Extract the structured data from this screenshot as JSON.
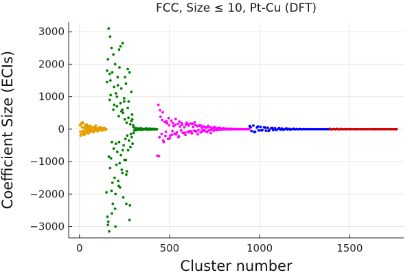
{
  "chart_data": {
    "type": "scatter",
    "title": "FCC, Size ≤ 10, Pt-Cu (DFT)",
    "xlabel": "Cluster number",
    "ylabel": "Coefficient Size (ECIs)",
    "xlim": [
      -60,
      1800
    ],
    "ylim": [
      -3350,
      3300
    ],
    "xticks": [
      0,
      500,
      1000,
      1500
    ],
    "yticks": [
      -3000,
      -2000,
      -1000,
      0,
      1000,
      2000,
      3000
    ],
    "xtick_labels": [
      "0",
      "500",
      "1000",
      "1500"
    ],
    "ytick_labels": [
      "−3000",
      "−2000",
      "−1000",
      "0",
      "1000",
      "2000",
      "3000"
    ],
    "grid": true,
    "legend": "none",
    "series": [
      {
        "color": "#e69f00",
        "x": [
          2,
          5,
          8,
          11,
          14,
          17,
          20,
          23,
          26,
          29,
          32,
          35,
          38,
          41,
          44,
          47,
          50,
          53,
          56,
          59,
          62,
          65,
          68,
          71,
          74,
          77,
          80,
          83,
          86,
          89,
          92,
          95,
          98,
          101,
          104,
          107,
          110,
          113,
          116,
          119,
          122,
          125,
          128,
          131,
          134,
          137,
          140,
          143,
          146,
          149,
          6,
          18,
          30,
          42,
          54,
          66,
          78,
          90,
          102,
          114,
          126,
          138,
          12,
          24,
          36,
          48,
          60,
          72,
          84,
          96,
          108,
          120,
          132,
          144
        ],
        "y": [
          120,
          -80,
          150,
          -150,
          60,
          -60,
          180,
          -120,
          40,
          -40,
          100,
          -100,
          30,
          -30,
          90,
          -90,
          20,
          -20,
          80,
          -70,
          10,
          -10,
          60,
          -60,
          50,
          -50,
          40,
          -40,
          30,
          -30,
          25,
          -25,
          20,
          -20,
          15,
          -15,
          10,
          -10,
          35,
          -35,
          45,
          -45,
          25,
          -25,
          15,
          -15,
          10,
          -10,
          5,
          -5,
          -200,
          210,
          -160,
          140,
          -110,
          70,
          -90,
          110,
          -65,
          55,
          -40,
          35,
          190,
          -180,
          130,
          -130,
          95,
          -75,
          65,
          -55,
          45,
          -25,
          20,
          -15
        ]
      },
      {
        "color": "#008000",
        "x": [
          150,
          153,
          155,
          158,
          160,
          162,
          165,
          168,
          170,
          172,
          175,
          178,
          180,
          182,
          185,
          188,
          190,
          192,
          195,
          198,
          200,
          202,
          205,
          208,
          210,
          212,
          215,
          218,
          220,
          222,
          225,
          228,
          230,
          232,
          235,
          238,
          240,
          242,
          245,
          248,
          250,
          252,
          255,
          258,
          260,
          262,
          265,
          268,
          270,
          272,
          275,
          278,
          280,
          282,
          285,
          288,
          290,
          292,
          295,
          298,
          300,
          153,
          163,
          173,
          183,
          193,
          203,
          213,
          223,
          233,
          243,
          253,
          263,
          273,
          283,
          293,
          158,
          168,
          178,
          188,
          198,
          208,
          218,
          228,
          238,
          248,
          258,
          268,
          278,
          288,
          170,
          180,
          200,
          220,
          240,
          260,
          300,
          305,
          310,
          315,
          320,
          325,
          330,
          335,
          340,
          345,
          350,
          355,
          360,
          365,
          370,
          375,
          380,
          385,
          390,
          395,
          400,
          405,
          410,
          415,
          420,
          425,
          430
        ],
        "y": [
          -1950,
          1800,
          -2700,
          2150,
          -2850,
          3100,
          -3150,
          900,
          -1200,
          1500,
          -900,
          2500,
          -400,
          1750,
          -2300,
          600,
          -600,
          1300,
          -1500,
          2000,
          -2000,
          1100,
          -1100,
          700,
          -700,
          1600,
          -1600,
          400,
          -400,
          1900,
          -1800,
          800,
          -800,
          1250,
          -1250,
          600,
          -650,
          500,
          -500,
          950,
          -950,
          300,
          -300,
          1400,
          -1400,
          200,
          -200,
          650,
          -650,
          350,
          -350,
          1750,
          -2350,
          150,
          -150,
          250,
          -250,
          450,
          -450,
          120,
          -120,
          1450,
          -850,
          1050,
          -1650,
          750,
          -450,
          1350,
          -1050,
          550,
          -2100,
          1600,
          -1300,
          850,
          -550,
          300,
          -2950,
          1700,
          -1900,
          2300,
          -2450,
          1000,
          -1750,
          2550,
          -1350,
          850,
          -950,
          1850,
          -2800,
          1150,
          2850,
          -2600,
          -3000,
          2450,
          2650,
          -2300,
          60,
          -40,
          30,
          -30,
          20,
          -20,
          15,
          -15,
          25,
          -25,
          10,
          -10,
          5,
          -5,
          20,
          -20,
          10,
          -10,
          15,
          -15,
          5,
          -5,
          10,
          -10,
          5,
          -5,
          0
        ]
      },
      {
        "color": "#ff00ff",
        "x": [
          432,
          438,
          444,
          450,
          456,
          462,
          468,
          474,
          480,
          486,
          492,
          498,
          504,
          510,
          516,
          522,
          528,
          534,
          540,
          546,
          552,
          558,
          564,
          570,
          576,
          582,
          588,
          594,
          600,
          606,
          612,
          618,
          624,
          630,
          636,
          642,
          648,
          654,
          660,
          666,
          672,
          678,
          684,
          690,
          696,
          702,
          708,
          714,
          720,
          726,
          732,
          738,
          744,
          750,
          756,
          762,
          768,
          774,
          780,
          786,
          792,
          798,
          804,
          810,
          816,
          822,
          828,
          834,
          840,
          846,
          852,
          858,
          864,
          870,
          876,
          882,
          888,
          894,
          900,
          906,
          912,
          918,
          924,
          930,
          936,
          942,
          441,
          459,
          477,
          495,
          513,
          531,
          549,
          567,
          585,
          603,
          621,
          639,
          657,
          675,
          693,
          711,
          729,
          747,
          765,
          783,
          447,
          465,
          483,
          501,
          519,
          537,
          555,
          573,
          591,
          609,
          627,
          645,
          663,
          681,
          699,
          717,
          735,
          753
        ],
        "y": [
          -820,
          750,
          -250,
          380,
          -150,
          520,
          -400,
          220,
          -80,
          180,
          -300,
          120,
          -200,
          260,
          -60,
          90,
          -140,
          310,
          -100,
          160,
          -220,
          80,
          -40,
          140,
          -120,
          60,
          -180,
          200,
          -90,
          110,
          -60,
          170,
          -130,
          70,
          -50,
          130,
          -80,
          90,
          -30,
          120,
          -100,
          50,
          -20,
          80,
          -60,
          40,
          -90,
          100,
          -40,
          60,
          -20,
          30,
          -50,
          70,
          -30,
          20,
          -10,
          40,
          -20,
          10,
          -15,
          25,
          -10,
          15,
          -5,
          10,
          -8,
          12,
          -5,
          8,
          -4,
          6,
          -3,
          5,
          -2,
          4,
          -3,
          3,
          -2,
          2,
          -1,
          2,
          -1,
          1,
          0,
          1,
          -830,
          280,
          -210,
          340,
          -170,
          130,
          -250,
          190,
          -110,
          150,
          -70,
          210,
          -160,
          110,
          -40,
          70,
          -120,
          50,
          -30,
          20,
          580,
          -350,
          240,
          -280,
          190,
          -160,
          230,
          -110,
          140,
          -90,
          160,
          -60,
          100,
          -70,
          60,
          -40,
          30,
          -20
        ]
      },
      {
        "color": "#0000ff",
        "x": [
          945,
          955,
          965,
          975,
          985,
          995,
          1005,
          1015,
          1025,
          1035,
          1045,
          1055,
          1065,
          1075,
          1085,
          1095,
          1105,
          1115,
          1125,
          1135,
          1145,
          1155,
          1165,
          1175,
          1185,
          1195,
          1205,
          1215,
          1225,
          1235,
          1245,
          1255,
          1265,
          1275,
          1285,
          1295,
          1305,
          1315,
          1325,
          1335,
          1345,
          1355,
          1365,
          1375,
          1385,
          950,
          970,
          990,
          1010,
          1030,
          1050,
          1070,
          1090,
          1110,
          1130,
          1150,
          1170,
          1190
        ],
        "y": [
          90,
          -60,
          110,
          -80,
          50,
          -40,
          70,
          -30,
          60,
          -50,
          40,
          -20,
          30,
          -30,
          25,
          -20,
          20,
          -15,
          15,
          -10,
          12,
          -10,
          10,
          -8,
          8,
          -6,
          6,
          -5,
          5,
          -4,
          4,
          -3,
          3,
          -2,
          2,
          -2,
          2,
          -1,
          1,
          -1,
          1,
          0,
          1,
          0,
          0,
          60,
          -90,
          80,
          -40,
          45,
          -55,
          35,
          -25,
          25,
          -20,
          18,
          -12,
          10
        ]
      },
      {
        "color": "#cc0000",
        "x": [
          1390,
          1400,
          1410,
          1420,
          1430,
          1440,
          1450,
          1460,
          1470,
          1480,
          1490,
          1500,
          1510,
          1520,
          1530,
          1540,
          1550,
          1560,
          1570,
          1580,
          1590,
          1600,
          1610,
          1620,
          1630,
          1640,
          1650,
          1660,
          1670,
          1680,
          1690,
          1700,
          1710,
          1720,
          1730,
          1740,
          1750,
          1760
        ],
        "y": [
          10,
          -8,
          6,
          -5,
          8,
          -6,
          5,
          -4,
          4,
          -3,
          3,
          -3,
          2,
          -2,
          2,
          -2,
          2,
          -1,
          1,
          -1,
          1,
          -1,
          1,
          0,
          1,
          0,
          0,
          1,
          0,
          -1,
          0,
          0,
          1,
          0,
          0,
          -1,
          0,
          0
        ]
      }
    ]
  }
}
